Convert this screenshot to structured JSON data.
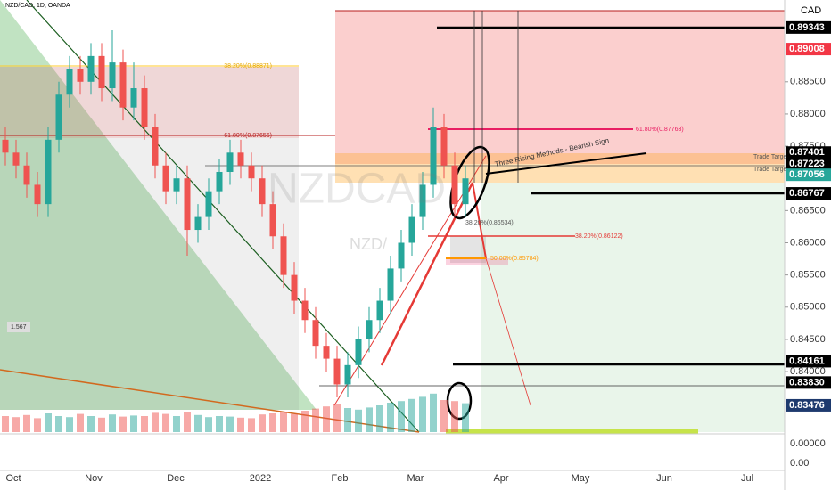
{
  "chart_data": {
    "type": "candlestick",
    "title": "NZD/CAD, 1D, OANDA",
    "currency": "CAD",
    "watermark": "NZDCAD",
    "watermark2": "NZD/",
    "ylim": [
      0.8306,
      0.8977
    ],
    "yticks": [
      {
        "value": 0.885,
        "label": "0.88500"
      },
      {
        "value": 0.88,
        "label": "0.88000"
      },
      {
        "value": 0.875,
        "label": "0.87500"
      },
      {
        "value": 0.865,
        "label": "0.86500"
      },
      {
        "value": 0.86,
        "label": "0.86000"
      },
      {
        "value": 0.855,
        "label": "0.85500"
      },
      {
        "value": 0.85,
        "label": "0.85000"
      },
      {
        "value": 0.845,
        "label": "0.84500"
      },
      {
        "value": 0.84,
        "label": "0.84000"
      }
    ],
    "price_labels": [
      {
        "value": 0.89343,
        "label": "0.89343",
        "color": "#000000"
      },
      {
        "value": 0.89008,
        "label": "0.89008",
        "color": "#f23645"
      },
      {
        "value": 0.87401,
        "label": "0.87401",
        "color": "#000000"
      },
      {
        "value": 0.87223,
        "label": "0.87223",
        "color": "#000000"
      },
      {
        "value": 0.87056,
        "label": "0.87056",
        "color": "#26a69a"
      },
      {
        "value": 0.86767,
        "label": "0.86767",
        "color": "#000000"
      },
      {
        "value": 0.84161,
        "label": "0.84161",
        "color": "#000000"
      },
      {
        "value": 0.8383,
        "label": "0.83830",
        "color": "#000000"
      },
      {
        "value": 0.83476,
        "label": "0.83476",
        "color": "#1e3a6e"
      }
    ],
    "volume_axis_labels": [
      "0.00000",
      "0.00"
    ],
    "x_labels": [
      "Oct",
      "Nov",
      "Dec",
      "2022",
      "Feb",
      "Mar",
      "Apr",
      "May",
      "Jun",
      "Jul"
    ],
    "up_color": "#26a69a",
    "down_color": "#ef5350",
    "candles": [
      [
        0.876,
        0.878,
        0.872,
        0.874
      ],
      [
        0.874,
        0.876,
        0.87,
        0.872
      ],
      [
        0.872,
        0.874,
        0.867,
        0.869
      ],
      [
        0.869,
        0.871,
        0.864,
        0.866
      ],
      [
        0.866,
        0.878,
        0.864,
        0.876
      ],
      [
        0.876,
        0.885,
        0.874,
        0.883
      ],
      [
        0.883,
        0.889,
        0.881,
        0.887
      ],
      [
        0.887,
        0.889,
        0.883,
        0.885
      ],
      [
        0.885,
        0.891,
        0.883,
        0.889
      ],
      [
        0.889,
        0.891,
        0.882,
        0.884
      ],
      [
        0.884,
        0.893,
        0.882,
        0.888
      ],
      [
        0.888,
        0.89,
        0.879,
        0.881
      ],
      [
        0.881,
        0.888,
        0.879,
        0.884
      ],
      [
        0.884,
        0.886,
        0.876,
        0.878
      ],
      [
        0.878,
        0.88,
        0.87,
        0.872
      ],
      [
        0.872,
        0.874,
        0.866,
        0.868
      ],
      [
        0.868,
        0.872,
        0.866,
        0.87
      ],
      [
        0.87,
        0.872,
        0.858,
        0.862
      ],
      [
        0.862,
        0.866,
        0.86,
        0.864
      ],
      [
        0.864,
        0.87,
        0.862,
        0.868
      ],
      [
        0.868,
        0.873,
        0.866,
        0.871
      ],
      [
        0.871,
        0.876,
        0.869,
        0.874
      ],
      [
        0.874,
        0.876,
        0.87,
        0.872
      ],
      [
        0.872,
        0.874,
        0.868,
        0.87
      ],
      [
        0.87,
        0.872,
        0.864,
        0.866
      ],
      [
        0.866,
        0.868,
        0.859,
        0.861
      ],
      [
        0.861,
        0.863,
        0.853,
        0.855
      ],
      [
        0.855,
        0.857,
        0.849,
        0.851
      ],
      [
        0.851,
        0.853,
        0.846,
        0.848
      ],
      [
        0.848,
        0.85,
        0.842,
        0.844
      ],
      [
        0.844,
        0.846,
        0.84,
        0.842
      ],
      [
        0.842,
        0.844,
        0.836,
        0.838
      ],
      [
        0.838,
        0.843,
        0.836,
        0.841
      ],
      [
        0.841,
        0.847,
        0.839,
        0.845
      ],
      [
        0.845,
        0.85,
        0.843,
        0.848
      ],
      [
        0.848,
        0.853,
        0.846,
        0.851
      ],
      [
        0.851,
        0.858,
        0.849,
        0.856
      ],
      [
        0.856,
        0.862,
        0.854,
        0.86
      ],
      [
        0.86,
        0.866,
        0.858,
        0.864
      ],
      [
        0.864,
        0.871,
        0.862,
        0.869
      ],
      [
        0.869,
        0.881,
        0.867,
        0.878
      ],
      [
        0.878,
        0.88,
        0.87,
        0.872
      ],
      [
        0.872,
        0.874,
        0.864,
        0.866
      ],
      [
        0.866,
        0.872,
        0.864,
        0.87
      ]
    ],
    "vlim": [
      0,
      100
    ],
    "volumes": [
      30,
      28,
      32,
      26,
      35,
      30,
      28,
      34,
      30,
      27,
      33,
      29,
      31,
      30,
      36,
      34,
      30,
      38,
      32,
      28,
      30,
      29,
      27,
      26,
      33,
      35,
      38,
      34,
      40,
      44,
      48,
      52,
      45,
      42,
      46,
      50,
      55,
      58,
      62,
      66,
      72,
      60,
      58,
      54
    ],
    "annotations": [
      "61.80%(0.87656)",
      "61.80%(0.87763)",
      "38.20%(0.86534)",
      "38.20%(0.86122)",
      "50.00%(0.85784)",
      "Three Rising Methods - Bearish Sign",
      "Trade Target",
      "Trade Target",
      "1.567",
      "38.20%(0.88871)"
    ]
  }
}
